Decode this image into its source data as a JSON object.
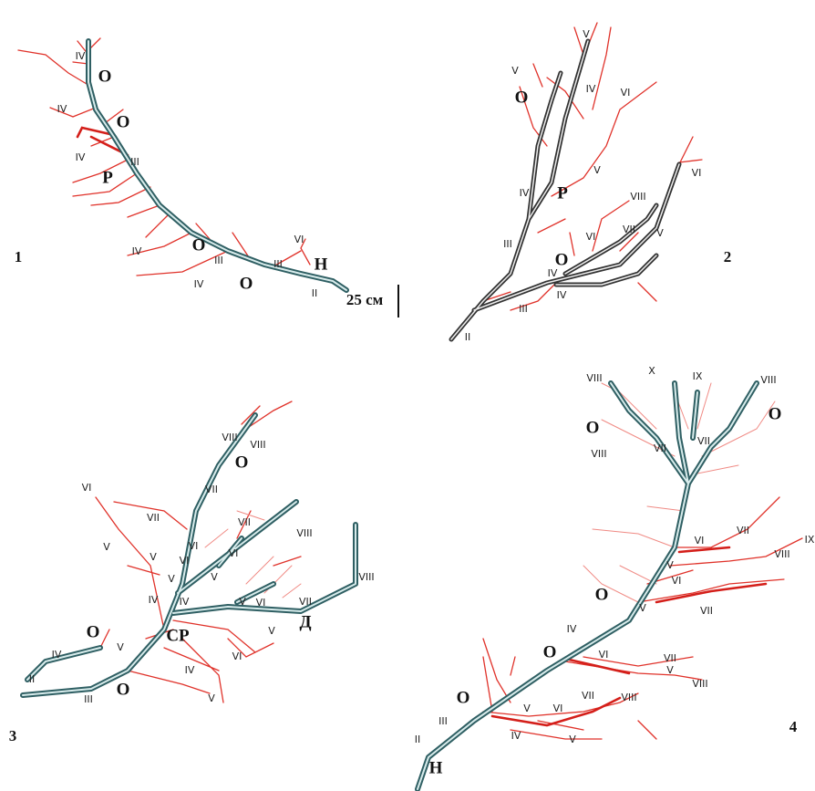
{
  "panels": [
    {
      "number": "1",
      "labels": [
        "IV",
        "O",
        "IV",
        "O",
        "IV",
        "III",
        "P",
        "VI",
        "H",
        "IV",
        "O",
        "III",
        "III",
        "IV",
        "O",
        "II"
      ]
    },
    {
      "number": "2",
      "labels": [
        "V",
        "V",
        "O",
        "IV",
        "VI",
        "VI",
        "V",
        "IV",
        "P",
        "VIII",
        "VII",
        "V",
        "III",
        "VI",
        "O",
        "IV",
        "IV",
        "III",
        "II"
      ]
    },
    {
      "number": "3",
      "labels": [
        "VIII",
        "VIII",
        "O",
        "VI",
        "VII",
        "VII",
        "VII",
        "VIII",
        "V",
        "V",
        "VI",
        "VI",
        "VI",
        "V",
        "V",
        "IV",
        "IV",
        "V",
        "VI",
        "VII",
        "VIII",
        "CP",
        "Д",
        "V",
        "IV",
        "O",
        "V",
        "VI",
        "IV",
        "II",
        "III",
        "O",
        "V"
      ]
    },
    {
      "number": "4",
      "labels": [
        "VIII",
        "X",
        "IX",
        "VIII",
        "O",
        "O",
        "VII",
        "VII",
        "VIII",
        "VII",
        "VIII",
        "IX",
        "VI",
        "V",
        "VI",
        "O",
        "V",
        "VII",
        "IV",
        "O",
        "VI",
        "VII",
        "V",
        "VIII",
        "O",
        "VII",
        "VIII",
        "V",
        "VI",
        "III",
        "IV",
        "V",
        "II",
        "H"
      ]
    }
  ],
  "scale_bar": "25 см"
}
